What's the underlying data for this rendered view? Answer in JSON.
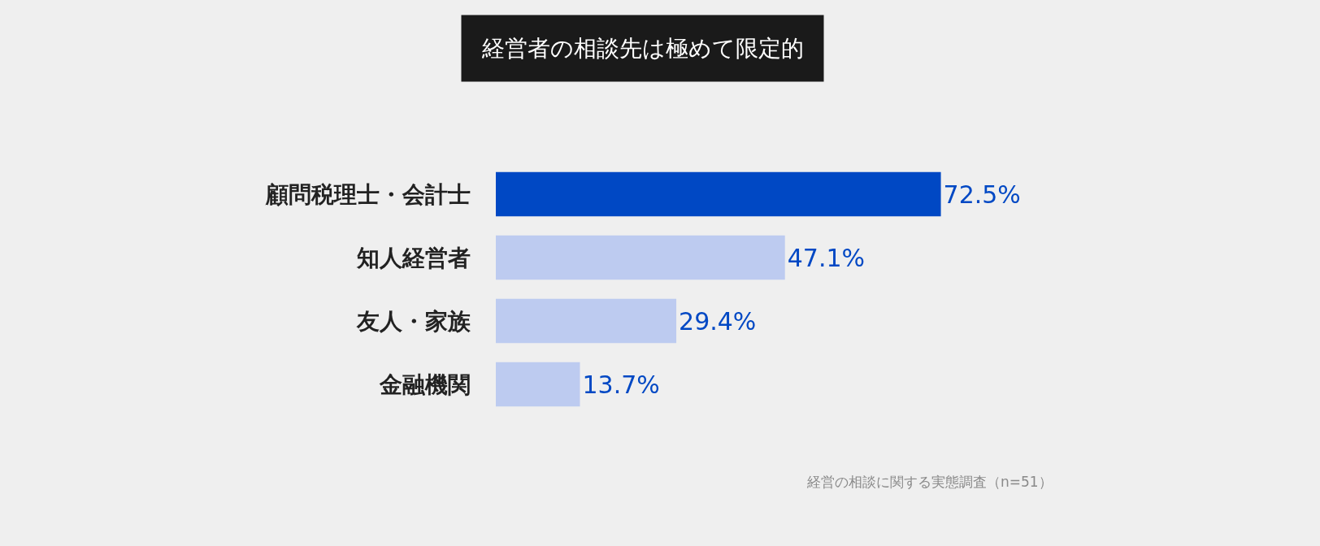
{
  "chart_data": {
    "type": "bar",
    "orientation": "horizontal",
    "title": "経営者の相談先は極めて限定的",
    "categories": [
      "顧問税理士・会計士",
      "知人経営者",
      "友人・家族",
      "金融機関"
    ],
    "values": [
      72.5,
      47.1,
      29.4,
      13.7
    ],
    "value_labels": [
      "72.5%",
      "47.1%",
      "29.4%",
      "13.7%"
    ],
    "colors": [
      "#0048c4",
      "#bdcbf0",
      "#bdcbf0",
      "#bdcbf0"
    ],
    "annotations": [
      "経営の相談に関する実態調査（n=51）"
    ],
    "tick_labels": "y",
    "grid": false,
    "legend": false
  }
}
